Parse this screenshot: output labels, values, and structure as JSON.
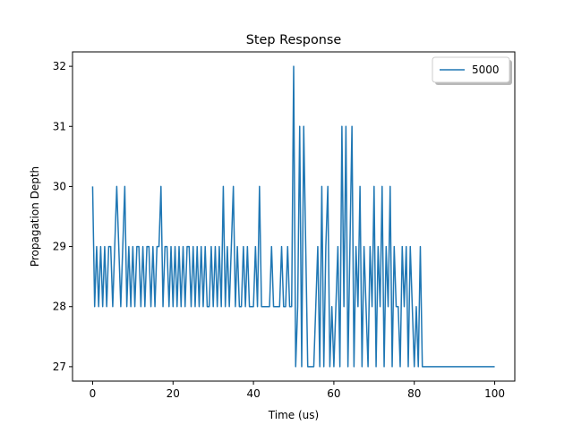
{
  "chart_data": {
    "type": "line",
    "title": "Step Response",
    "xlabel": "Time (us)",
    "ylabel": "Propagation Depth",
    "x": [
      0,
      0.5,
      1,
      1.5,
      2,
      2.5,
      3,
      3.5,
      4,
      4.5,
      5,
      5.5,
      6,
      6.5,
      7,
      7.5,
      8,
      8.5,
      9,
      9.5,
      10,
      10.5,
      11,
      11.5,
      12,
      12.5,
      13,
      13.5,
      14,
      14.5,
      15,
      15.5,
      16,
      16.5,
      17,
      17.5,
      18,
      18.5,
      19,
      19.5,
      20,
      20.5,
      21,
      21.5,
      22,
      22.5,
      23,
      23.5,
      24,
      24.5,
      25,
      25.5,
      26,
      26.5,
      27,
      27.5,
      28,
      28.5,
      29,
      29.5,
      30,
      30.5,
      31,
      31.5,
      32,
      32.5,
      33,
      33.5,
      34,
      34.5,
      35,
      35.5,
      36,
      36.5,
      37,
      37.5,
      38,
      38.5,
      39,
      39.5,
      40,
      40.5,
      41,
      41.5,
      42,
      42.5,
      43,
      43.5,
      44,
      44.5,
      45,
      45.5,
      46,
      46.5,
      47,
      47.5,
      48,
      48.5,
      49,
      49.5,
      50,
      50.5,
      51,
      51.5,
      52,
      52.5,
      53,
      53.5,
      54,
      54.5,
      55,
      55.5,
      56,
      56.5,
      57,
      57.5,
      58,
      58.5,
      59,
      59.5,
      60,
      60.5,
      61,
      61.5,
      62,
      62.5,
      63,
      63.5,
      64,
      64.5,
      65,
      65.5,
      66,
      66.5,
      67,
      67.5,
      68,
      68.5,
      69,
      69.5,
      70,
      70.5,
      71,
      71.5,
      72,
      72.5,
      73,
      73.5,
      74,
      74.5,
      75,
      75.5,
      76,
      76.5,
      77,
      77.5,
      78,
      78.5,
      79,
      79.5,
      80,
      80.5,
      81,
      81.5,
      82,
      82.5,
      100
    ],
    "series": [
      {
        "name": "5000",
        "color": "#1f77b4",
        "values": [
          30,
          28,
          29,
          28,
          29,
          28,
          29,
          28,
          29,
          29,
          28,
          29,
          30,
          29,
          28,
          29,
          30,
          28,
          29,
          28,
          29,
          28,
          29,
          29,
          28,
          29,
          28,
          29,
          29,
          28,
          29,
          28,
          29,
          29,
          30,
          28,
          29,
          29,
          28,
          29,
          28,
          29,
          28,
          29,
          28,
          29,
          28,
          29,
          29,
          28,
          29,
          28,
          29,
          28,
          29,
          28,
          29,
          28,
          28,
          29,
          28,
          29,
          28,
          29,
          28,
          30,
          28,
          29,
          28,
          29,
          30,
          28,
          29,
          28,
          28,
          29,
          28,
          29,
          28,
          28,
          28,
          29,
          28,
          30,
          28,
          28,
          28,
          28,
          28,
          29,
          28,
          28,
          28,
          28,
          29,
          28,
          28,
          29,
          28,
          28,
          32,
          27,
          28,
          31,
          27,
          31,
          29,
          27,
          27,
          27,
          27,
          28,
          29,
          27,
          30,
          27,
          29,
          30,
          27,
          28,
          27,
          28,
          29,
          27,
          31,
          28,
          31,
          27,
          29,
          31,
          27,
          29,
          28,
          30,
          27,
          29,
          28,
          27,
          29,
          28,
          30,
          27,
          29,
          28,
          30,
          27,
          29,
          28,
          30,
          27,
          29,
          28,
          28,
          27,
          29,
          28,
          29,
          27,
          29,
          28,
          27,
          28,
          27,
          29,
          27,
          27,
          27
        ]
      }
    ],
    "xlim": [
      -5,
      105
    ],
    "ylim": [
      26.76,
      32.24
    ],
    "xticks": [
      0,
      20,
      40,
      60,
      80,
      100
    ],
    "yticks": [
      27,
      28,
      29,
      30,
      31,
      32
    ],
    "legend": "upper right"
  }
}
